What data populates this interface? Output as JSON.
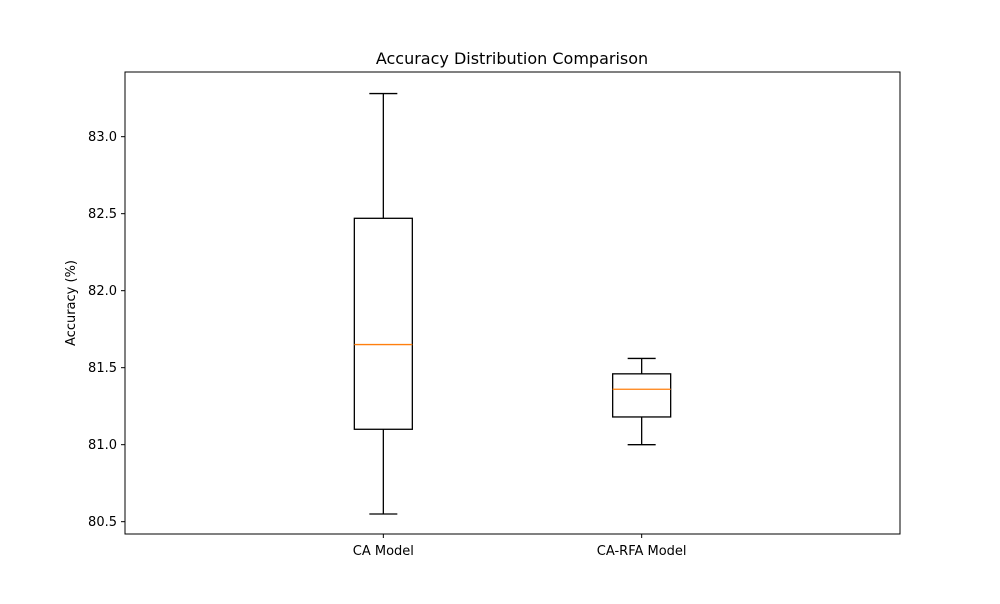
{
  "chart_data": {
    "type": "box",
    "title": "Accuracy Distribution Comparison",
    "xlabel": "",
    "ylabel": "Accuracy (%)",
    "ylim": [
      80.42,
      83.42
    ],
    "yticks": [
      80.5,
      81.0,
      81.5,
      82.0,
      82.5,
      83.0
    ],
    "ytick_labels": [
      "80.5",
      "81.0",
      "81.5",
      "82.0",
      "82.5",
      "83.0"
    ],
    "categories": [
      "CA Model",
      "CA-RFA Model"
    ],
    "boxes": [
      {
        "whisker_low": 80.55,
        "q1": 81.1,
        "median": 81.65,
        "q3": 82.47,
        "whisker_high": 83.28
      },
      {
        "whisker_low": 81.0,
        "q1": 81.18,
        "median": 81.36,
        "q3": 81.46,
        "whisker_high": 81.56
      }
    ],
    "grid": false,
    "colors": {
      "box": "#000000",
      "median": "#ff7f0e",
      "axes": "#000000"
    }
  }
}
